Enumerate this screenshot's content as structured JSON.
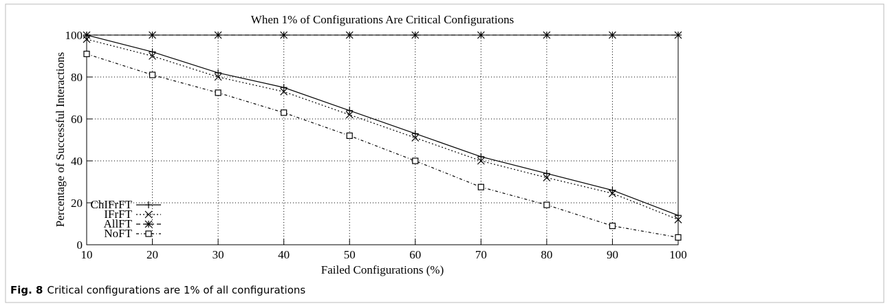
{
  "chart_data": {
    "type": "line",
    "title": "When 1% of Configurations Are Critical Configurations",
    "x_label": "Failed Configurations (%)",
    "y_label": "Percentage of Successful Interactions",
    "caption_label": "Fig. 8",
    "caption": "Critical configurations are 1% of all configurations",
    "x": [
      10,
      20,
      30,
      40,
      50,
      60,
      70,
      80,
      90,
      100
    ],
    "xlim": [
      10,
      100
    ],
    "xticks": [
      10,
      20,
      30,
      40,
      50,
      60,
      70,
      80,
      90,
      100
    ],
    "ylim": [
      0,
      100
    ],
    "yticks": [
      0,
      20,
      40,
      60,
      80,
      100
    ],
    "grid": true,
    "legend": "lower left",
    "series": [
      {
        "name": "ChIFrFT",
        "color": "#000000",
        "marker": "plus",
        "dash": "solid",
        "values": [
          100,
          92,
          82,
          75,
          64,
          53,
          42,
          34,
          26,
          14
        ]
      },
      {
        "name": "IFrFT",
        "color": "#000000",
        "marker": "x",
        "dash": "dotted",
        "values": [
          98,
          90,
          80,
          73,
          62,
          51,
          40,
          32,
          24.5,
          12
        ]
      },
      {
        "name": "AllFT",
        "color": "#000000",
        "marker": "star",
        "dash": "dashed",
        "values": [
          100,
          100,
          100,
          100,
          100,
          100,
          100,
          100,
          100,
          100
        ]
      },
      {
        "name": "NoFT",
        "color": "#000000",
        "marker": "square",
        "dash": "dashdot",
        "values": [
          91,
          81,
          72.5,
          63,
          52,
          40,
          27.5,
          19,
          9,
          3.5
        ]
      }
    ]
  }
}
